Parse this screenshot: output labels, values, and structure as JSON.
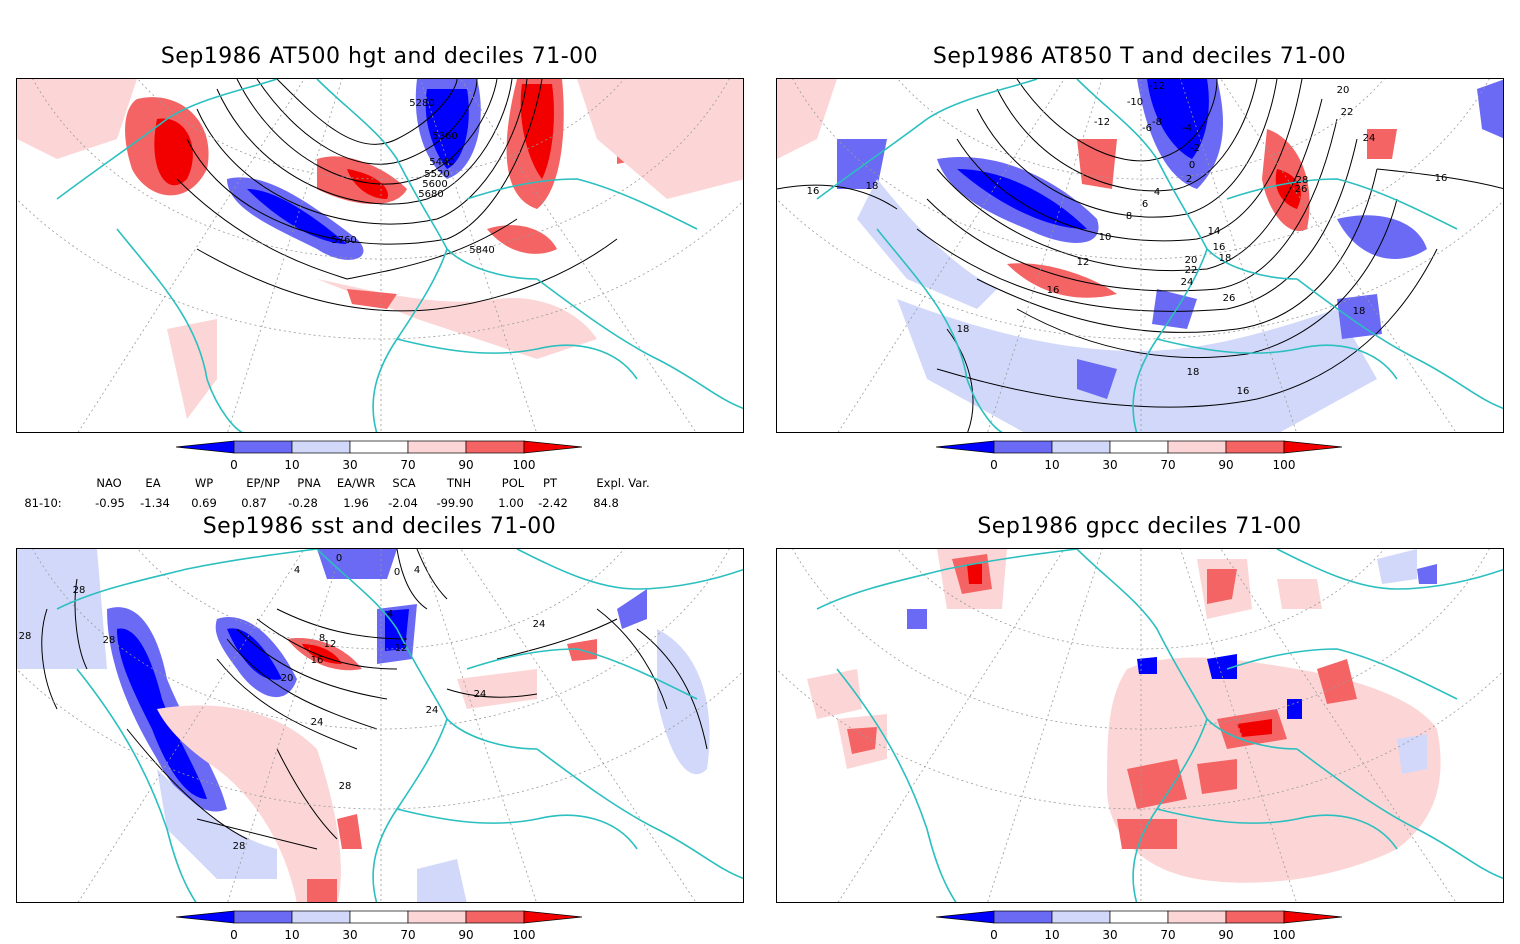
{
  "panels": [
    {
      "id": "tl",
      "title": "Sep1986 AT500 hgt and deciles 71-00",
      "contour_labels": [
        "5280",
        "5360",
        "5440",
        "5520",
        "5600",
        "5680",
        "5760",
        "5840"
      ]
    },
    {
      "id": "tr",
      "title": "Sep1986 AT850 T and deciles 71-00",
      "contour_labels": [
        "-12",
        "-10",
        "-12",
        "-8",
        "-6",
        "-4",
        "-2",
        "0",
        "2",
        "4",
        "6",
        "8",
        "10",
        "12",
        "14",
        "16",
        "18",
        "20",
        "22",
        "24",
        "26",
        "28",
        "26",
        "24",
        "22",
        "20",
        "18",
        "16",
        "16",
        "18",
        "18",
        "16",
        "18",
        "16"
      ]
    },
    {
      "id": "bl",
      "title": "Sep1986 sst and deciles 71-00",
      "contour_labels": [
        "0",
        "4",
        "0",
        "4",
        "8",
        "12",
        "16",
        "20",
        "24",
        "28",
        "28",
        "24",
        "24",
        "24",
        "28",
        "28",
        "28",
        "4",
        "12"
      ]
    },
    {
      "id": "br",
      "title": "Sep1986 gpcc deciles 71-00",
      "contour_labels": []
    }
  ],
  "colorbar": {
    "ticks": [
      "0",
      "10",
      "30",
      "70",
      "90",
      "100"
    ],
    "colors": {
      "dark_blue": "#0000ff",
      "mid_blue": "#6a6af5",
      "light_blue": "#d2d8fa",
      "white": "#ffffff",
      "light_red": "#fcd6d6",
      "mid_red": "#f46464",
      "dark_red": "#f20000"
    }
  },
  "indices": {
    "headers": [
      "NAO",
      "EA",
      "WP",
      "EP/NP",
      "PNA",
      "EA/WR",
      "SCA",
      "TNH",
      "POL",
      "PT",
      "Expl. Var."
    ],
    "row_label": "81-10:",
    "values": [
      "-0.95",
      "-1.34",
      "0.69",
      "0.87",
      "-0.28",
      "1.96",
      "-2.04",
      "-99.90",
      "1.00",
      "-2.42",
      "84.8"
    ]
  },
  "colors": {
    "coast": "#2bbfbf",
    "grid": "#9a9a9a",
    "contour": "#000000"
  }
}
